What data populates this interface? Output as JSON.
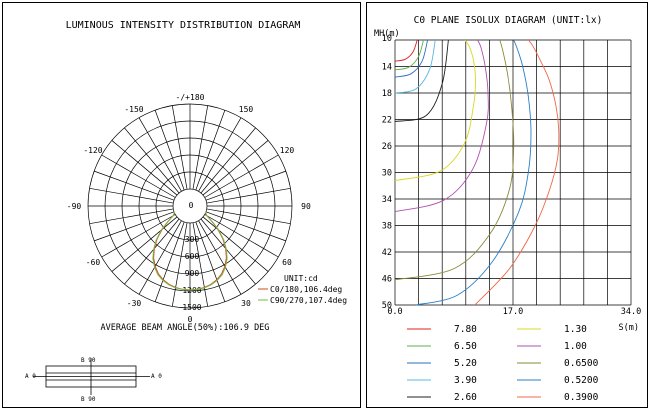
{
  "chart_data": [
    {
      "type": "polar",
      "title": "LUMINOUS INTENSITY DISTRIBUTION DIAGRAM",
      "angle_labels": [
        "-/+180",
        "150",
        "120",
        "90",
        "60",
        "30",
        "0",
        "-30",
        "-60",
        "-90",
        "-120",
        "-150"
      ],
      "center_label": "0",
      "radial_labels": [
        "300",
        "600",
        "900",
        "1200",
        "1500"
      ],
      "rmax": 1500,
      "unit": "UNIT:cd",
      "series": [
        {
          "name": "C0/180,106.4deg",
          "color": "#d04a1a",
          "angles": [
            0,
            5,
            10,
            15,
            20,
            25,
            30,
            35,
            40,
            45,
            50,
            55,
            60,
            65,
            70
          ],
          "values": [
            1180,
            1175,
            1160,
            1130,
            1085,
            1020,
            930,
            820,
            680,
            520,
            340,
            170,
            40,
            5,
            0
          ]
        },
        {
          "name": "C90/270,107.4deg",
          "color": "#7ab84a",
          "angles": [
            0,
            5,
            10,
            15,
            20,
            25,
            30,
            35,
            40,
            45,
            50,
            55,
            60,
            65,
            70
          ],
          "values": [
            1185,
            1180,
            1168,
            1140,
            1100,
            1040,
            950,
            840,
            700,
            540,
            360,
            180,
            45,
            8,
            0
          ]
        }
      ],
      "beam_angle_text": "AVERAGE BEAM ANGLE(50%):106.9 DEG",
      "symbol": {
        "top": "B 90",
        "bottom": "B 90",
        "left": "A 0",
        "right": "A 0"
      }
    },
    {
      "type": "isolux",
      "title": "C0 PLANE ISOLUX DIAGRAM (UNIT:lx)",
      "ylabel": "MH(m)",
      "xlabel": "S(m)",
      "y_ticks": [
        "10",
        "14",
        "18",
        "22",
        "26",
        "30",
        "34",
        "38",
        "42",
        "46",
        "50"
      ],
      "x_ticks": [
        "0.0",
        "17.0",
        "34.0"
      ],
      "xlim": [
        0,
        34
      ],
      "ylim": [
        10,
        50
      ],
      "series": [
        {
          "name": "7.80",
          "color": "#e02020",
          "x": [
            0,
            1.5,
            2.6,
            3.2
          ],
          "y": [
            13.2,
            12.9,
            11.8,
            10
          ]
        },
        {
          "name": "6.50",
          "color": "#5cb04c",
          "x": [
            0,
            2,
            3.4,
            4.1
          ],
          "y": [
            14.5,
            14.1,
            12.5,
            10
          ]
        },
        {
          "name": "5.20",
          "color": "#2a6fc0",
          "x": [
            0,
            2.3,
            3.9,
            4.7
          ],
          "y": [
            15.6,
            15.1,
            13.2,
            10
          ]
        },
        {
          "name": "3.90",
          "color": "#57b8e0",
          "x": [
            0,
            3,
            5,
            5.8
          ],
          "y": [
            18,
            17.4,
            14.4,
            10
          ]
        },
        {
          "name": "2.60",
          "color": "#202020",
          "x": [
            0,
            4.5,
            6.8,
            7.7
          ],
          "y": [
            22.3,
            21.4,
            16.6,
            10
          ]
        },
        {
          "name": "1.30",
          "color": "#d8d820",
          "x": [
            0,
            6.5,
            10,
            11.3,
            11.6,
            11.3,
            10.7,
            10.1
          ],
          "y": [
            31.2,
            29.8,
            25.6,
            20,
            16,
            13,
            11,
            10
          ]
        },
        {
          "name": "1.00",
          "color": "#b050b0",
          "x": [
            0,
            7,
            11.2,
            13.2,
            13.4,
            13,
            12.4,
            11.9
          ],
          "y": [
            35.9,
            34.2,
            29.5,
            22.5,
            18,
            14,
            11.2,
            10
          ]
        },
        {
          "name": "0.6500",
          "color": "#8a8a3a",
          "x": [
            0,
            8.5,
            13.6,
            16.5,
            17.1,
            16.8,
            16.2,
            15.5,
            15.1
          ],
          "y": [
            46.2,
            44.5,
            39.4,
            32.5,
            26,
            20,
            15,
            11.5,
            10
          ]
        },
        {
          "name": "0.5200",
          "color": "#2a80c8",
          "x": [
            3,
            9,
            14,
            17.8,
            19.2,
            19.6,
            19.2,
            18.4,
            17.6,
            17.1
          ],
          "y": [
            50,
            48.5,
            43.5,
            36,
            30,
            24,
            18.5,
            14,
            11.3,
            10
          ]
        },
        {
          "name": "0.3900",
          "color": "#f06848",
          "x": [
            11.5,
            16.5,
            20.2,
            22.3,
            23.4,
            23.6,
            23.2,
            22.2,
            20.9,
            19.8,
            19.2
          ],
          "y": [
            50,
            44.5,
            38,
            32.5,
            28,
            24,
            20,
            16,
            13,
            10.8,
            10
          ]
        }
      ]
    }
  ]
}
